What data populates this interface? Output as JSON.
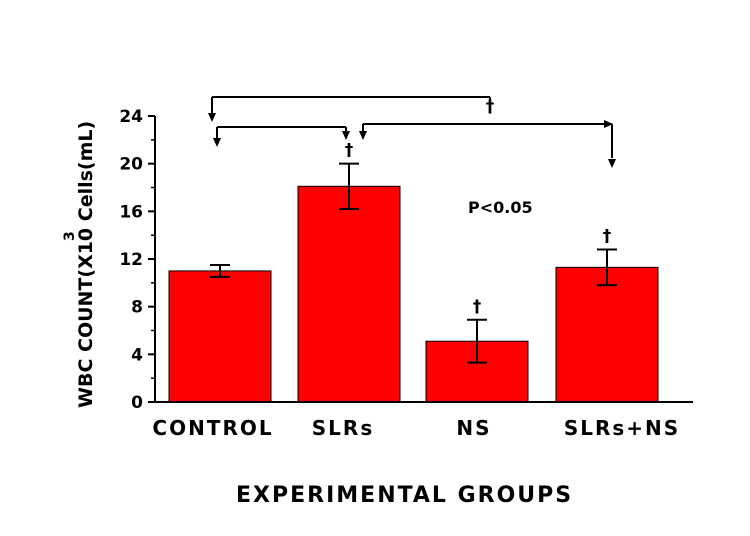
{
  "chart_data": {
    "type": "bar",
    "categories": [
      "CONTROL",
      "SLRs",
      "NS",
      "SLRs+NS"
    ],
    "values": [
      11.0,
      18.1,
      5.1,
      11.3
    ],
    "errors": [
      0.5,
      1.9,
      1.8,
      1.5
    ],
    "significance_markers": [
      "",
      "†",
      "†",
      "†"
    ],
    "xlabel": "EXPERIMENTAL GROUPS",
    "ylabel": "WBC COUNT(X10 Cells(mL)",
    "ylabel_superscript": "3",
    "ylim": [
      0,
      24
    ],
    "yticks": [
      "0",
      "4",
      "8",
      "12",
      "16",
      "20",
      "24"
    ],
    "annotation": "P<0.05",
    "comparison_marker": "†",
    "bar_color": "#ff0000",
    "grid": false
  }
}
